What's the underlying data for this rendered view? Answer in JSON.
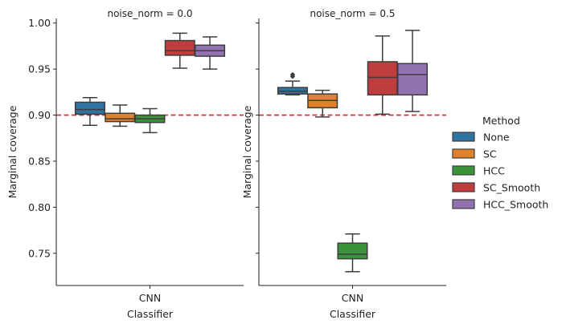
{
  "chart_data": {
    "type": "box",
    "xlabel": "Classifier",
    "ylabel": "Marginal coverage",
    "ylim": [
      0.715,
      1.005
    ],
    "yticks": [
      0.75,
      0.8,
      0.85,
      0.9,
      0.95,
      1.0
    ],
    "yticklabels": [
      "0.75",
      "0.80",
      "0.85",
      "0.90",
      "0.95",
      "1.00"
    ],
    "category": "CNN",
    "reference_line": {
      "y": 0.9,
      "style": "dashed",
      "color": "#d62728"
    },
    "legend": {
      "title": "Method",
      "placement": "right"
    },
    "methods": [
      {
        "name": "None",
        "color": "#3274a1"
      },
      {
        "name": "SC",
        "color": "#e1812c"
      },
      {
        "name": "HCC",
        "color": "#3a923a"
      },
      {
        "name": "SC_Smooth",
        "color": "#c03d3e"
      },
      {
        "name": "HCC_Smooth",
        "color": "#9372b2"
      }
    ],
    "panels": [
      {
        "title": "noise_norm = 0.0",
        "boxes": [
          {
            "method": "None",
            "whislo": 0.889,
            "q1": 0.901,
            "med": 0.906,
            "q3": 0.914,
            "whishi": 0.919,
            "fliers": []
          },
          {
            "method": "SC",
            "whislo": 0.888,
            "q1": 0.893,
            "med": 0.896,
            "q3": 0.902,
            "whishi": 0.911,
            "fliers": []
          },
          {
            "method": "HCC",
            "whislo": 0.881,
            "q1": 0.892,
            "med": 0.896,
            "q3": 0.9,
            "whishi": 0.907,
            "fliers": []
          },
          {
            "method": "SC_Smooth",
            "whislo": 0.951,
            "q1": 0.965,
            "med": 0.97,
            "q3": 0.981,
            "whishi": 0.989,
            "fliers": []
          },
          {
            "method": "HCC_Smooth",
            "whislo": 0.95,
            "q1": 0.964,
            "med": 0.97,
            "q3": 0.976,
            "whishi": 0.985,
            "fliers": []
          }
        ]
      },
      {
        "title": "noise_norm = 0.5",
        "boxes": [
          {
            "method": "None",
            "whislo": 0.922,
            "q1": 0.923,
            "med": 0.926,
            "q3": 0.93,
            "whishi": 0.937,
            "fliers": [
              0.942,
              0.944
            ]
          },
          {
            "method": "SC",
            "whislo": 0.898,
            "q1": 0.908,
            "med": 0.916,
            "q3": 0.923,
            "whishi": 0.927,
            "fliers": []
          },
          {
            "method": "HCC",
            "whislo": 0.73,
            "q1": 0.744,
            "med": 0.749,
            "q3": 0.761,
            "whishi": 0.771,
            "fliers": []
          },
          {
            "method": "SC_Smooth",
            "whislo": 0.901,
            "q1": 0.922,
            "med": 0.941,
            "q3": 0.958,
            "whishi": 0.986,
            "fliers": []
          },
          {
            "method": "HCC_Smooth",
            "whislo": 0.904,
            "q1": 0.922,
            "med": 0.944,
            "q3": 0.956,
            "whishi": 0.992,
            "fliers": []
          }
        ]
      }
    ]
  }
}
